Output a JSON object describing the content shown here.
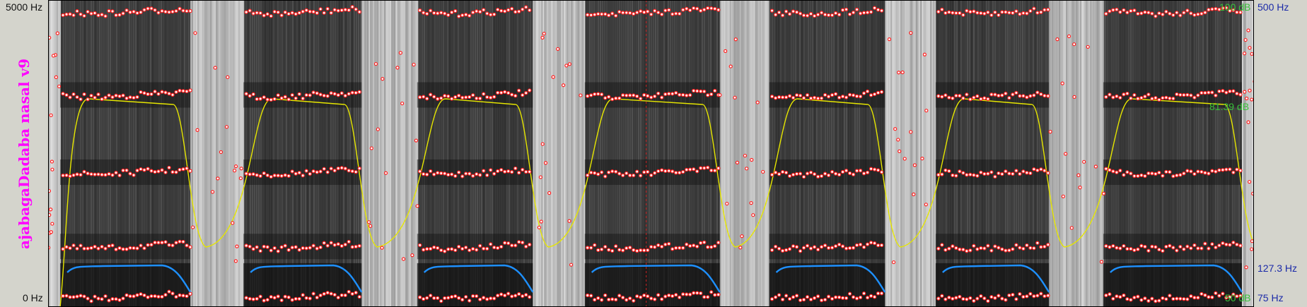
{
  "title": "ajabagaDadaba nasal v9",
  "left_axis": {
    "top_label": "5000 Hz",
    "bottom_label": "0 Hz"
  },
  "right_axis": {
    "top_label": "500 Hz",
    "mid_label": "127.3 Hz",
    "bottom_label": "75 Hz"
  },
  "intensity_labels": {
    "top": "100 dB",
    "mid": "81.39 dB",
    "bottom": "50 dB"
  },
  "colors": {
    "formant": "#ff2020",
    "pitch": "#1e90ff",
    "intensity": "#e6e600",
    "cursor": "#cc2222",
    "title": "#ff00ff",
    "db_labels": "#39c23a",
    "pitch_labels": "#1b2aa8"
  },
  "voiced_segments": [
    {
      "start": 0.01,
      "end": 0.118
    },
    {
      "start": 0.162,
      "end": 0.26
    },
    {
      "start": 0.306,
      "end": 0.402
    },
    {
      "start": 0.445,
      "end": 0.557
    },
    {
      "start": 0.598,
      "end": 0.694
    },
    {
      "start": 0.736,
      "end": 0.83
    },
    {
      "start": 0.875,
      "end": 0.99
    }
  ],
  "formant_levels_hz": [
    60,
    900,
    2150,
    3450,
    4850
  ],
  "cursor_position": 0.496
}
